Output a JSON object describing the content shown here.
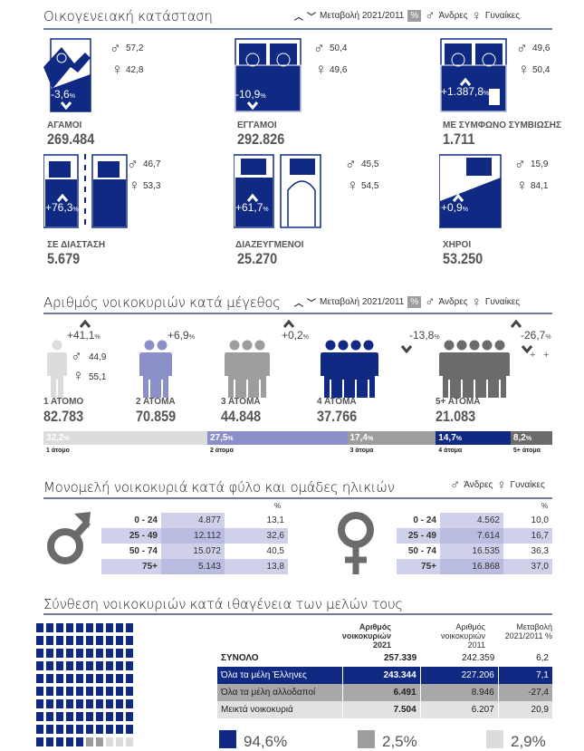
{
  "colors": {
    "navy": "#102a83",
    "lavender": "#8b91c8",
    "gray": "#9d9d9d",
    "dark_gray": "#6b6b6b",
    "light_gray": "#dcdcdc",
    "lav_light": "#cfd1ea"
  },
  "legend": {
    "change": "Μεταβολή 2021/2011",
    "pct": "%",
    "men": "Άνδρες",
    "women": "Γυναίκες",
    "male_symbol": "♂",
    "female_symbol": "♀",
    "up": "^",
    "down": "v"
  },
  "marital": {
    "title": "Οικογενειακή κατάσταση",
    "items": [
      {
        "label": "ΑΓΑΜΟΙ",
        "value": "269.484",
        "male": "57,2",
        "female": "42,8",
        "change": "-3,6",
        "dir": "down"
      },
      {
        "label": "ΕΓΓΑΜΟΙ",
        "value": "292.826",
        "male": "50,4",
        "female": "49,6",
        "change": "-10,9",
        "dir": "down"
      },
      {
        "label": "ΜΕ ΣΥΜΦΩΝΟ ΣΥΜΒΙΩΣΗΣ",
        "value": "1.711",
        "male": "49,6",
        "female": "50,4",
        "change": "+1.387,8",
        "dir": "up"
      },
      {
        "label": "ΣΕ ΔΙΑΣΤΑΣΗ",
        "value": "5.679",
        "male": "46,7",
        "female": "53,3",
        "change": "+76,3",
        "dir": "up"
      },
      {
        "label": "ΔΙΑΖΕΥΓΜΕΝΟΙ",
        "value": "25.270",
        "male": "45,5",
        "female": "54,5",
        "change": "+61,7",
        "dir": "up"
      },
      {
        "label": "ΧΗΡΟΙ",
        "value": "53.250",
        "male": "15,9",
        "female": "84,1",
        "change": "+0,9",
        "dir": "up"
      }
    ]
  },
  "households": {
    "title": "Αριθμός νοικοκυριών κατά μέγεθος",
    "male": "44,9",
    "female": "55,1",
    "items": [
      {
        "label": "1 ΑΤΟΜΟ",
        "value": "82.783",
        "change": "+41,1",
        "dir": "up",
        "share": 32.2,
        "share_label": "32,2",
        "bar_label": "1 άτομο",
        "people": 1,
        "color": "#dcdcdc"
      },
      {
        "label": "2 ΑΤΟΜΑ",
        "value": "70.859",
        "change": "+6,9",
        "dir": "up",
        "share": 27.5,
        "share_label": "27,5",
        "bar_label": "2 άτομα",
        "people": 2,
        "color": "#8b91c8"
      },
      {
        "label": "3 ΑΤΟΜΑ",
        "value": "44.848",
        "change": "+0,2",
        "dir": "up",
        "share": 17.4,
        "share_label": "17,4",
        "bar_label": "3 άτομα",
        "people": 3,
        "color": "#9d9d9d"
      },
      {
        "label": "4 ΑΤΟΜΑ",
        "value": "37.766",
        "change": "-13,8",
        "dir": "down",
        "share": 14.7,
        "share_label": "14,7",
        "bar_label": "4 άτομα",
        "people": 4,
        "color": "#102a83"
      },
      {
        "label": "5+ ΑΤΟΜΑ",
        "value": "21.083",
        "change": "-26,7",
        "dir": "down",
        "share": 8.2,
        "share_label": "8,2",
        "bar_label": "5+ άτομα",
        "people": 5,
        "color": "#6b6b6b",
        "plus": "+"
      }
    ]
  },
  "single": {
    "title": "Μονομελή νοικοκυριά κατά φύλο και ομάδες ηλικιών",
    "pct_header": "%",
    "men": [
      [
        "0 - 24",
        "4.877",
        "13,1"
      ],
      [
        "25 - 49",
        "12.112",
        "32,6"
      ],
      [
        "50 - 74",
        "15.072",
        "40,5"
      ],
      [
        "75+",
        "5.143",
        "13,8"
      ]
    ],
    "women": [
      [
        "0 - 24",
        "4.562",
        "10,0"
      ],
      [
        "25 - 49",
        "7.614",
        "16,7"
      ],
      [
        "50 - 74",
        "16.535",
        "36,3"
      ],
      [
        "75+",
        "16.868",
        "37,0"
      ]
    ]
  },
  "nationality": {
    "title": "Σύνθεση νοικοκυριών κατά ιθαγένεια των μελών τους",
    "headers": [
      "Αριθμός νοικοκυριών 2021",
      "Αριθμός νοικοκυριών 2011",
      "Μεταβολή 2021/2011 %"
    ],
    "rows": [
      [
        "ΣΥΝΟΛΟ",
        "257.339",
        "242.359",
        "6,2"
      ],
      [
        "Όλα τα μέλη Έλληνες",
        "243.344",
        "227.206",
        "7,1"
      ],
      [
        "Όλα τα μέλη αλλοδαποί",
        "6.491",
        "8.946",
        "-27,4"
      ],
      [
        "Μεικτά νοικοκυριά",
        "7.504",
        "6.207",
        "20,9"
      ]
    ],
    "shares": [
      {
        "label": "94,6%",
        "value": 94.6
      },
      {
        "label": "2,5%",
        "value": 2.5
      },
      {
        "label": "2,9%",
        "value": 2.9
      }
    ]
  }
}
